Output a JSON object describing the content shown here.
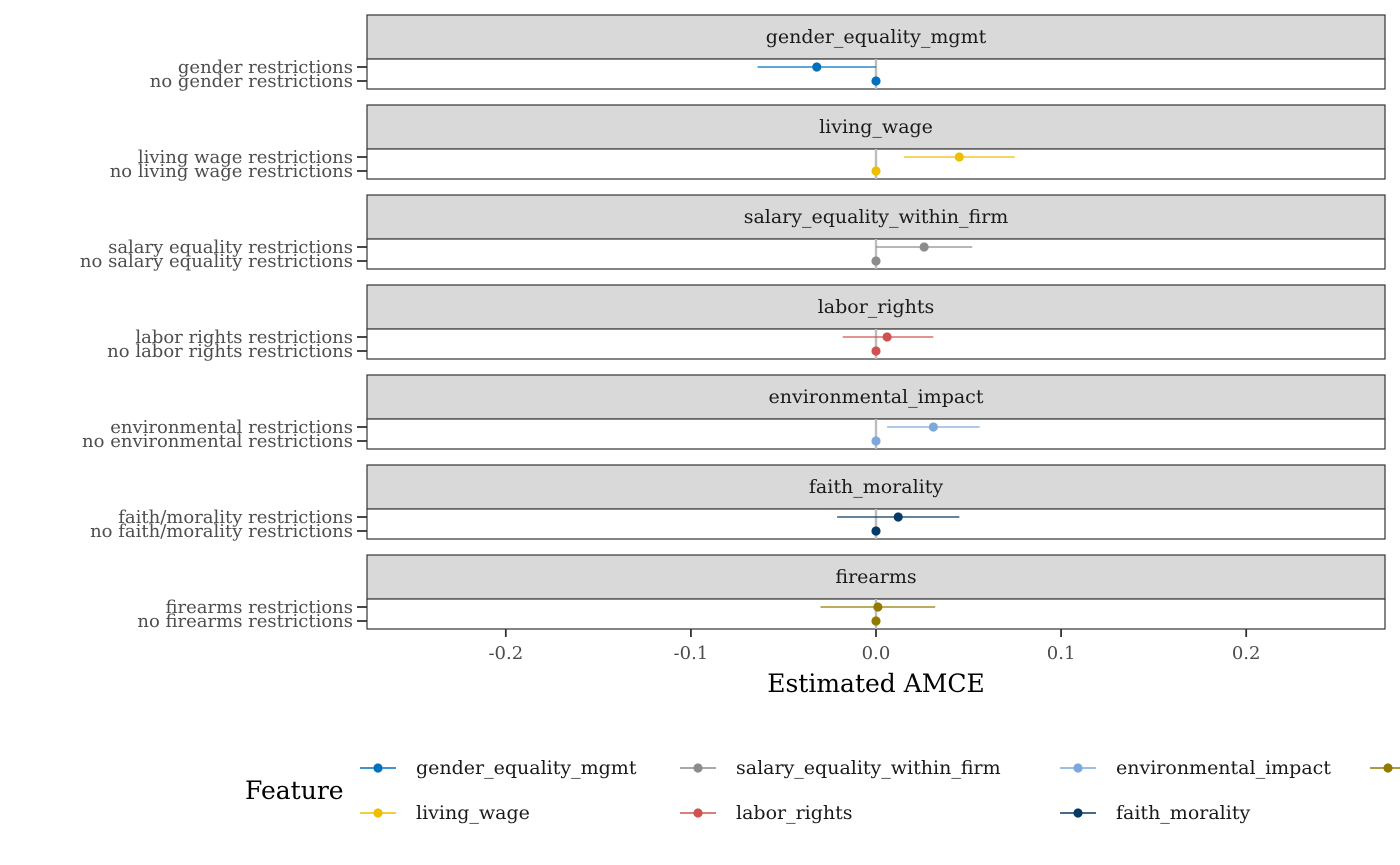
{
  "chart_data": {
    "type": "dot_errorbar_facets",
    "xlabel": "Estimated AMCE",
    "xlim": [
      -0.275,
      0.275
    ],
    "xticks": [
      -0.2,
      -0.1,
      0.0,
      0.1,
      0.2
    ],
    "xtick_labels": [
      "-0.2",
      "-0.1",
      "0.0",
      "0.1",
      "0.2"
    ],
    "reference_line_x": 0,
    "grid": false,
    "legend": {
      "title": "Feature",
      "position": "bottom",
      "entries": [
        {
          "label": "gender_equality_mgmt",
          "color": "#0072bd"
        },
        {
          "label": "living_wage",
          "color": "#f0be00"
        },
        {
          "label": "salary_equality_within_firm",
          "color": "#8c8c8c"
        },
        {
          "label": "labor_rights",
          "color": "#cf5250"
        },
        {
          "label": "environmental_impact",
          "color": "#7ea7dc"
        },
        {
          "label": "faith_morality",
          "color": "#063a66"
        },
        {
          "label": "",
          "color": "#927a00"
        }
      ]
    },
    "facets": [
      {
        "strip": "gender_equality_mgmt",
        "color": "#0072bd",
        "rows": [
          {
            "label": "gender restrictions",
            "estimate": -0.032,
            "ci": [
              -0.064,
              0.0
            ]
          },
          {
            "label": "no gender restrictions",
            "estimate": 0.0,
            "ci": null
          }
        ]
      },
      {
        "strip": "living_wage",
        "color": "#f0be00",
        "rows": [
          {
            "label": "living wage restrictions",
            "estimate": 0.045,
            "ci": [
              0.015,
              0.075
            ]
          },
          {
            "label": "no living wage restrictions",
            "estimate": 0.0,
            "ci": null
          }
        ]
      },
      {
        "strip": "salary_equality_within_firm",
        "color": "#8c8c8c",
        "rows": [
          {
            "label": "salary equality restrictions",
            "estimate": 0.026,
            "ci": [
              0.0,
              0.052
            ]
          },
          {
            "label": "no salary equality restrictions",
            "estimate": 0.0,
            "ci": null
          }
        ]
      },
      {
        "strip": "labor_rights",
        "color": "#cf5250",
        "rows": [
          {
            "label": "labor rights restrictions",
            "estimate": 0.006,
            "ci": [
              -0.018,
              0.031
            ]
          },
          {
            "label": "no labor rights restrictions",
            "estimate": 0.0,
            "ci": null
          }
        ]
      },
      {
        "strip": "environmental_impact",
        "color": "#7ea7dc",
        "rows": [
          {
            "label": "environmental restrictions",
            "estimate": 0.031,
            "ci": [
              0.006,
              0.056
            ]
          },
          {
            "label": "no environmental restrictions",
            "estimate": 0.0,
            "ci": null
          }
        ]
      },
      {
        "strip": "faith_morality",
        "color": "#063a66",
        "rows": [
          {
            "label": "faith/morality restrictions",
            "estimate": 0.012,
            "ci": [
              -0.021,
              0.045
            ]
          },
          {
            "label": "no faith/morality restrictions",
            "estimate": 0.0,
            "ci": null
          }
        ]
      },
      {
        "strip": "firearms",
        "color": "#927a00",
        "rows": [
          {
            "label": "firearms restrictions",
            "estimate": 0.001,
            "ci": [
              -0.03,
              0.032
            ]
          },
          {
            "label": "no firearms restrictions",
            "estimate": 0.0,
            "ci": null
          }
        ]
      }
    ]
  }
}
